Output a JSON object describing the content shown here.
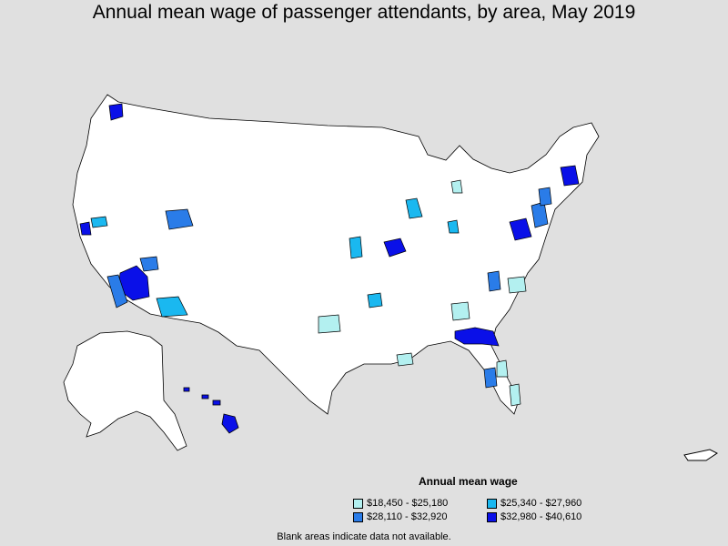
{
  "title": "Annual mean wage of passenger attendants, by area, May 2019",
  "legend": {
    "title": "Annual mean wage",
    "items": [
      {
        "label": "$18,450 - $25,180",
        "color": "#b3f0f0"
      },
      {
        "label": "$25,340 - $27,960",
        "color": "#1ab8f0"
      },
      {
        "label": "$28,110 - $32,920",
        "color": "#2a7ce8"
      },
      {
        "label": "$32,980 - $40,610",
        "color": "#0a10e8"
      }
    ]
  },
  "note": "Blank areas indicate data not available.",
  "colors": {
    "background": "#e0e0e0",
    "land": "#ffffff",
    "border": "#000000"
  }
}
